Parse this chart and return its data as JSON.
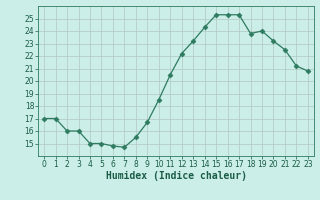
{
  "x": [
    0,
    1,
    2,
    3,
    4,
    5,
    6,
    7,
    8,
    9,
    10,
    11,
    12,
    13,
    14,
    15,
    16,
    17,
    18,
    19,
    20,
    21,
    22,
    23
  ],
  "y": [
    17,
    17,
    16,
    16,
    15,
    15,
    14.8,
    14.7,
    15.5,
    16.7,
    18.5,
    20.5,
    22.2,
    23.2,
    24.3,
    25.3,
    25.3,
    25.3,
    23.8,
    24.0,
    23.2,
    22.5,
    21.2,
    20.8
  ],
  "xlabel": "Humidex (Indice chaleur)",
  "ylim": [
    14,
    26
  ],
  "xlim": [
    -0.5,
    23.5
  ],
  "yticks": [
    15,
    16,
    17,
    18,
    19,
    20,
    21,
    22,
    23,
    24,
    25
  ],
  "xticks": [
    0,
    1,
    2,
    3,
    4,
    5,
    6,
    7,
    8,
    9,
    10,
    11,
    12,
    13,
    14,
    15,
    16,
    17,
    18,
    19,
    20,
    21,
    22,
    23
  ],
  "line_color": "#2e7b60",
  "marker": "D",
  "marker_size": 2.5,
  "bg_color": "#cceee8",
  "grid_major_color": "#b0c8c4",
  "grid_minor_color": "#d0e8e4",
  "axes_color": "#2e7b60",
  "label_color": "#1a5c46",
  "tick_color": "#1a5c46"
}
